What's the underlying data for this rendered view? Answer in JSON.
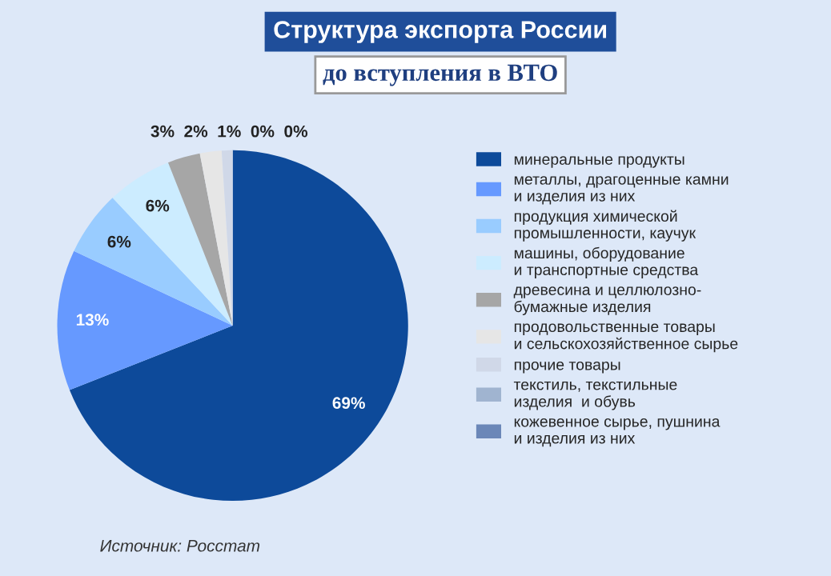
{
  "chart_data": {
    "type": "pie",
    "title": "Структура экспорта России",
    "subtitle": "до вступления в ВТО",
    "categories": [
      "минеральные продукты",
      "металлы, драгоценные камни\nи изделия из них",
      "продукция химической\nпромышленности, каучук",
      "машины, оборудование\nи транспортные средства",
      "древесина и целлюлозно-\nбумажные изделия",
      "продовольственные товары\nи сельскохозяйственное сырье",
      "прочие товары",
      "текстиль, текстильные\nизделия  и обувь",
      "кожевенное сырье, пушнина\nи изделия из них"
    ],
    "values": [
      69,
      13,
      6,
      6,
      3,
      2,
      1,
      0,
      0
    ],
    "colors": [
      "#0d4a9a",
      "#6699ff",
      "#99ccff",
      "#ccecff",
      "#a6a6a6",
      "#e6e6e6",
      "#d0d8e8",
      "#a0b4d0",
      "#6b87b8"
    ],
    "value_labels": [
      "69%",
      "13%",
      "6%",
      "6%",
      "3%",
      "2%",
      "1%",
      "0%",
      "0%"
    ],
    "legend": "right",
    "annotations": [
      "Источник: Росстат"
    ]
  }
}
